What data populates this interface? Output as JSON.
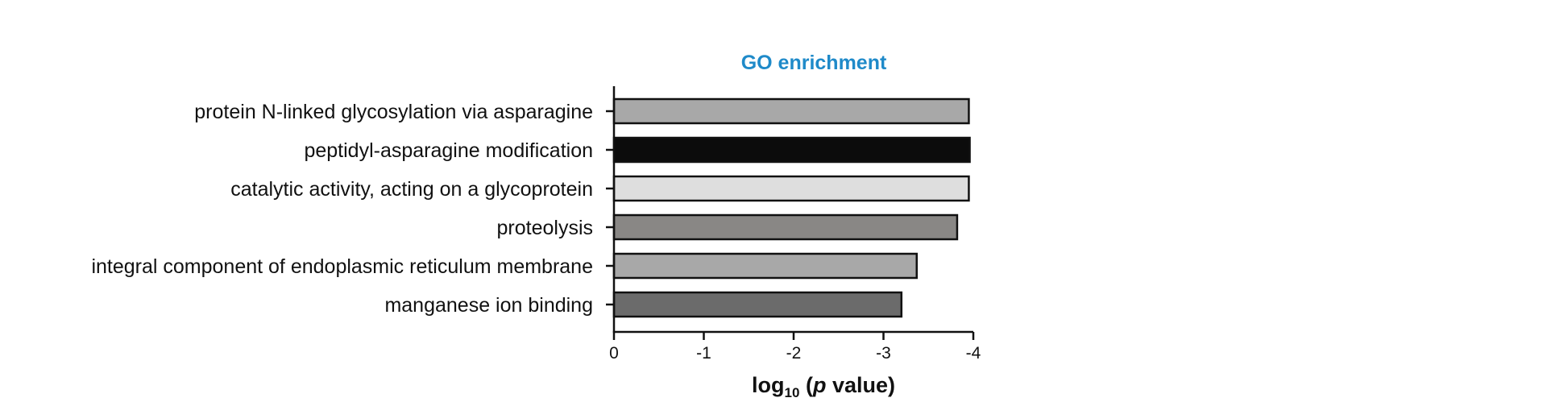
{
  "chart_data": {
    "type": "bar",
    "orientation": "horizontal",
    "title": "GO enrichment",
    "title_color": "#1f8ac9",
    "xlabel": {
      "prefix": "log",
      "subscript": "10",
      "open": " (",
      "italic": "p",
      "suffix": " value)"
    },
    "xlim": [
      0,
      -4
    ],
    "xticks": [
      "0",
      "-1",
      "-2",
      "-3",
      "-4"
    ],
    "xtick_values": [
      0,
      -1,
      -2,
      -3,
      -4
    ],
    "grid": false,
    "categories": [
      "protein N-linked glycosylation via asparagine",
      "peptidyl-asparagine modification",
      "catalytic activity, acting on a glycoprotein",
      "proteolysis",
      "integral component of endoplasmic reticulum membrane",
      "manganese ion binding"
    ],
    "values": [
      -3.95,
      -3.96,
      -3.95,
      -3.82,
      -3.37,
      -3.2
    ],
    "bar_colors": [
      "#a8a8a8",
      "#0c0c0c",
      "#dedede",
      "#898785",
      "#a8a8a8",
      "#6b6b6b"
    ]
  }
}
